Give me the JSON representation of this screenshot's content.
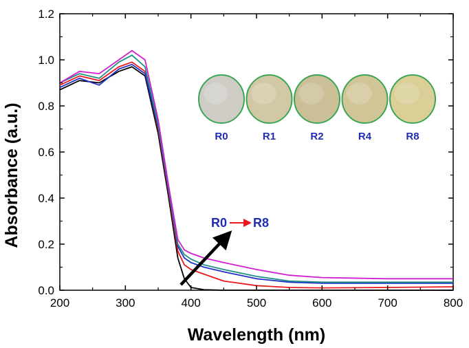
{
  "chart_data": {
    "type": "line",
    "xlabel": "Wavelength (nm)",
    "ylabel": "Absorbance (a.u.)",
    "xlim": [
      200,
      800
    ],
    "ylim": [
      0.0,
      1.2
    ],
    "x_ticks": [
      200,
      300,
      400,
      500,
      600,
      700,
      800
    ],
    "y_ticks": [
      0.0,
      0.2,
      0.4,
      0.6,
      0.8,
      1.0,
      1.2
    ],
    "x_tick_labels": [
      "200",
      "300",
      "400",
      "500",
      "600",
      "700",
      "800"
    ],
    "y_tick_labels": [
      "0.0",
      "0.2",
      "0.4",
      "0.6",
      "0.8",
      "1.0",
      "1.2"
    ],
    "grid": false,
    "x": [
      200,
      230,
      260,
      290,
      310,
      330,
      350,
      365,
      380,
      390,
      400,
      420,
      450,
      500,
      550,
      600,
      700,
      800
    ],
    "series": [
      {
        "color": "#000000",
        "values": [
          0.87,
          0.91,
          0.9,
          0.95,
          0.97,
          0.93,
          0.68,
          0.42,
          0.14,
          0.05,
          0.012,
          0.002,
          0.0,
          0.0,
          0.0,
          0.0,
          0.0,
          0.0
        ]
      },
      {
        "color": "#e8191c",
        "values": [
          0.89,
          0.93,
          0.91,
          0.97,
          0.99,
          0.95,
          0.7,
          0.44,
          0.17,
          0.11,
          0.09,
          0.07,
          0.04,
          0.02,
          0.012,
          0.01,
          0.012,
          0.015
        ]
      },
      {
        "color": "#2030c8",
        "values": [
          0.88,
          0.92,
          0.89,
          0.96,
          0.98,
          0.94,
          0.71,
          0.45,
          0.19,
          0.14,
          0.12,
          0.1,
          0.08,
          0.05,
          0.035,
          0.03,
          0.03,
          0.03
        ]
      },
      {
        "color": "#1f8f83",
        "values": [
          0.9,
          0.94,
          0.92,
          0.99,
          1.02,
          0.97,
          0.72,
          0.46,
          0.2,
          0.155,
          0.135,
          0.11,
          0.09,
          0.06,
          0.04,
          0.035,
          0.035,
          0.035
        ]
      },
      {
        "color": "#d21ed2",
        "values": [
          0.9,
          0.95,
          0.94,
          1.0,
          1.04,
          1.0,
          0.74,
          0.47,
          0.22,
          0.175,
          0.16,
          0.14,
          0.12,
          0.09,
          0.065,
          0.055,
          0.05,
          0.05
        ]
      }
    ],
    "sample_images": [
      "R0",
      "R1",
      "R2",
      "R4",
      "R8"
    ],
    "sample_colors": [
      "#cfccc6",
      "#d2c8a5",
      "#cbbf98",
      "#d1c597",
      "#d9cf97"
    ],
    "sample_border_color": "#3aa655",
    "annotation": {
      "from": "R0",
      "to": "R8"
    }
  }
}
